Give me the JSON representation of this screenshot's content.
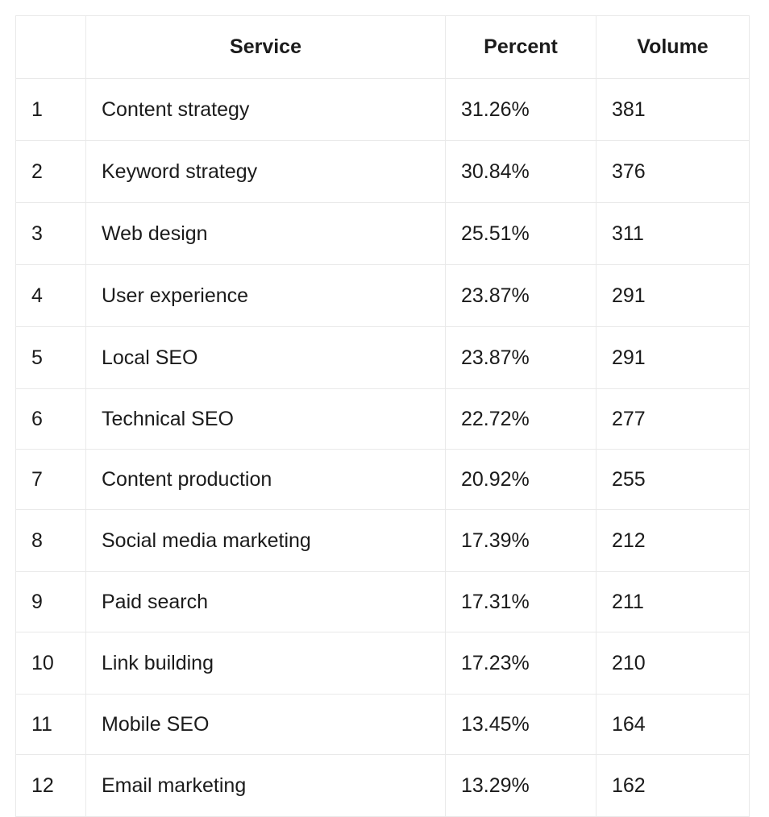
{
  "table": {
    "headers": {
      "rank": "",
      "service": "Service",
      "percent": "Percent",
      "volume": "Volume"
    },
    "rows": [
      {
        "rank": "1",
        "service": "Content strategy",
        "percent": "31.26%",
        "volume": "381"
      },
      {
        "rank": "2",
        "service": "Keyword strategy",
        "percent": "30.84%",
        "volume": "376"
      },
      {
        "rank": "3",
        "service": "Web design",
        "percent": "25.51%",
        "volume": "311"
      },
      {
        "rank": "4",
        "service": "User experience",
        "percent": "23.87%",
        "volume": "291"
      },
      {
        "rank": "5",
        "service": "Local SEO",
        "percent": "23.87%",
        "volume": "291"
      },
      {
        "rank": "6",
        "service": "Technical SEO",
        "percent": "22.72%",
        "volume": "277"
      },
      {
        "rank": "7",
        "service": "Content production",
        "percent": "20.92%",
        "volume": "255"
      },
      {
        "rank": "8",
        "service": "Social media marketing",
        "percent": "17.39%",
        "volume": "212"
      },
      {
        "rank": "9",
        "service": "Paid search",
        "percent": "17.31%",
        "volume": "211"
      },
      {
        "rank": "10",
        "service": "Link building",
        "percent": "17.23%",
        "volume": "210"
      },
      {
        "rank": "11",
        "service": "Mobile SEO",
        "percent": "13.45%",
        "volume": "164"
      },
      {
        "rank": "12",
        "service": "Email marketing",
        "percent": "13.29%",
        "volume": "162"
      }
    ]
  }
}
